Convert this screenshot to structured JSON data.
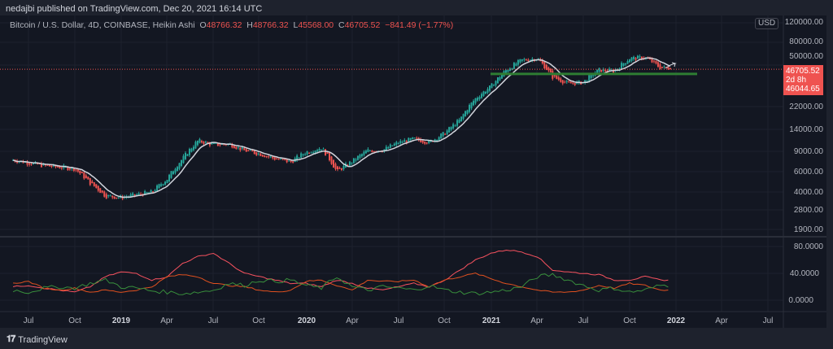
{
  "header": {
    "published": "nedajbi published on TradingView.com, Dec 20, 2021 16:14 UTC"
  },
  "legend": {
    "symbol": "Bitcoin / U.S. Dollar, 4D, COINBASE, Heikin Ashi",
    "o_label": "O",
    "o": "48766.32",
    "h_label": "H",
    "h": "48766.32",
    "l_label": "L",
    "l": "45568.00",
    "c_label": "C",
    "c": "46705.52",
    "change": "−841.49 (−1.77%)"
  },
  "price_axis": {
    "currency": "USD",
    "labels": [
      "120000.00",
      "80000.00",
      "50000.00",
      "22000.00",
      "14000.00",
      "9000.00",
      "6000.00",
      "4000.00",
      "2800.00",
      "1900.00"
    ]
  },
  "price_box": {
    "last": "46705.52",
    "countdown": "2d 8h",
    "ma": "46044.65"
  },
  "indicator_axis": {
    "labels": [
      "80.0000",
      "40.0000",
      "0.0000"
    ]
  },
  "time_axis": {
    "labels": [
      "Jul",
      "Oct",
      "2019",
      "Apr",
      "Jul",
      "Oct",
      "2020",
      "Apr",
      "Jul",
      "Oct",
      "2021",
      "Apr",
      "Jul",
      "Oct",
      "2022",
      "Apr",
      "Jul"
    ]
  },
  "brand": "TradingView",
  "colors": {
    "up": "#26a69a",
    "down": "#ef5350",
    "ma": "#d1d4dc",
    "support": "#2e7d32",
    "bg": "#131722"
  },
  "chart_data": {
    "type": "candlestick",
    "scale": "log",
    "start": "2018-06",
    "monthly_price": [
      7600,
      7200,
      6800,
      6600,
      6400,
      4800,
      3700,
      3600,
      3800,
      4000,
      5200,
      7800,
      11200,
      10300,
      10500,
      9200,
      8600,
      7800,
      7300,
      8900,
      9700,
      6000,
      7400,
      9200,
      9300,
      10800,
      11600,
      10800,
      13000,
      17000,
      26000,
      33000,
      46000,
      56000,
      58000,
      40000,
      35000,
      36000,
      46000,
      45000,
      58000,
      59000,
      48000
    ],
    "last_close": 46705.52,
    "support_level": 42500,
    "indicator": {
      "series_a": [
        20,
        22,
        18,
        15,
        12,
        20,
        35,
        42,
        40,
        30,
        35,
        55,
        65,
        70,
        55,
        40,
        35,
        30,
        25,
        25,
        20,
        30,
        25,
        18,
        15,
        20,
        25,
        20,
        30,
        45,
        60,
        70,
        75,
        72,
        65,
        45,
        42,
        40,
        38,
        30,
        30,
        35,
        30
      ],
      "series_b": [
        25,
        28,
        18,
        15,
        18,
        12,
        15,
        12,
        15,
        20,
        35,
        38,
        35,
        25,
        22,
        20,
        15,
        12,
        15,
        28,
        30,
        22,
        15,
        30,
        28,
        28,
        30,
        20,
        30,
        35,
        40,
        32,
        25,
        20,
        15,
        12,
        12,
        15,
        22,
        18,
        25,
        22,
        15
      ],
      "series_c": [
        15,
        12,
        18,
        20,
        18,
        25,
        30,
        20,
        18,
        14,
        12,
        10,
        12,
        15,
        25,
        22,
        30,
        28,
        30,
        22,
        18,
        35,
        20,
        15,
        20,
        18,
        15,
        22,
        15,
        12,
        10,
        12,
        15,
        20,
        35,
        38,
        30,
        22,
        15,
        18,
        12,
        15,
        22
      ]
    }
  }
}
